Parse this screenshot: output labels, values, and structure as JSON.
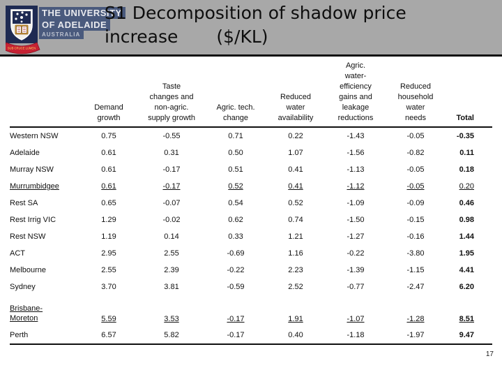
{
  "slide": {
    "title_line1": "S1 Decomposition of shadow price",
    "title_line2_word": "increase",
    "title_line2_unit": "($/KL)",
    "page_number": "17"
  },
  "logo": {
    "line1": "THE UNIVERSITY",
    "line2": "OF ADELAIDE",
    "line3": "AUSTRALIA",
    "motto": "SUB CRUCE LUMEN"
  },
  "colors": {
    "header_gray": "#a8a8a8",
    "header_rule": "#0d0d0d",
    "logo_navy": "#1e2a52",
    "logo_bar_blue": "#4a5a7d",
    "logo_red": "#c62233",
    "logo_gold": "#e8b23a",
    "text_black": "#101010"
  },
  "table": {
    "type": "table",
    "title": "S1 Decomposition of shadow price increase ($/KL)",
    "columns": [
      "Region",
      "Demand growth",
      "Taste changes and non-agric. supply growth",
      "Agric. tech. change",
      "Reduced water availability",
      "Agric. water-efficiency gains and leakage reductions",
      "Reduced household water needs",
      "Total"
    ],
    "header_lines": [
      [
        ""
      ],
      [
        "Demand",
        "growth"
      ],
      [
        "Taste",
        "changes and",
        "non-agric.",
        "supply growth"
      ],
      [
        "Agric. tech.",
        "change"
      ],
      [
        "Reduced",
        "water",
        "availability"
      ],
      [
        "Agric.",
        "water-",
        "efficiency",
        "gains and",
        "leakage",
        "reductions"
      ],
      [
        "Reduced",
        "household",
        "water",
        "needs"
      ],
      [
        "Total"
      ]
    ],
    "rows": [
      {
        "label_lines": [
          "Western NSW"
        ],
        "values": [
          "0.75",
          "-0.55",
          "0.71",
          "0.22",
          "-1.43",
          "-0.05",
          "-0.35"
        ],
        "underline": false,
        "total_bold": true,
        "tall": false
      },
      {
        "label_lines": [
          "Adelaide"
        ],
        "values": [
          "0.61",
          "0.31",
          "0.50",
          "1.07",
          "-1.56",
          "-0.82",
          "0.11"
        ],
        "underline": false,
        "total_bold": true,
        "tall": false
      },
      {
        "label_lines": [
          "Murray NSW"
        ],
        "values": [
          "0.61",
          "-0.17",
          "0.51",
          "0.41",
          "-1.13",
          "-0.05",
          "0.18"
        ],
        "underline": false,
        "total_bold": true,
        "tall": false
      },
      {
        "label_lines": [
          "Murrumbidgee"
        ],
        "values": [
          "0.61",
          "-0.17",
          "0.52",
          "0.41",
          "-1.12",
          "-0.05",
          "0.20"
        ],
        "underline": true,
        "total_bold": false,
        "tall": false
      },
      {
        "label_lines": [
          "Rest SA"
        ],
        "values": [
          "0.65",
          "-0.07",
          "0.54",
          "0.52",
          "-1.09",
          "-0.09",
          "0.46"
        ],
        "underline": false,
        "total_bold": true,
        "tall": false
      },
      {
        "label_lines": [
          "Rest Irrig VIC"
        ],
        "values": [
          "1.29",
          "-0.02",
          "0.62",
          "0.74",
          "-1.50",
          "-0.15",
          "0.98"
        ],
        "underline": false,
        "total_bold": true,
        "tall": false
      },
      {
        "label_lines": [
          "Rest NSW"
        ],
        "values": [
          "1.19",
          "0.14",
          "0.33",
          "1.21",
          "-1.27",
          "-0.16",
          "1.44"
        ],
        "underline": false,
        "total_bold": true,
        "tall": false
      },
      {
        "label_lines": [
          "ACT"
        ],
        "values": [
          "2.95",
          "2.55",
          "-0.69",
          "1.16",
          "-0.22",
          "-3.80",
          "1.95"
        ],
        "underline": false,
        "total_bold": true,
        "tall": false
      },
      {
        "label_lines": [
          "Melbourne"
        ],
        "values": [
          "2.55",
          "2.39",
          "-0.22",
          "2.23",
          "-1.39",
          "-1.15",
          "4.41"
        ],
        "underline": false,
        "total_bold": true,
        "tall": false
      },
      {
        "label_lines": [
          "Sydney"
        ],
        "values": [
          "3.70",
          "3.81",
          "-0.59",
          "2.52",
          "-0.77",
          "-2.47",
          "6.20"
        ],
        "underline": false,
        "total_bold": true,
        "tall": false
      },
      {
        "label_lines": [
          "Brisbane-",
          "Moreton"
        ],
        "values": [
          "5.59",
          "3.53",
          "-0.17",
          "1.91",
          "-1.07",
          "-1.28",
          "8.51"
        ],
        "underline": true,
        "total_bold": true,
        "tall": true
      },
      {
        "label_lines": [
          "Perth"
        ],
        "values": [
          "6.57",
          "5.82",
          "-0.17",
          "0.40",
          "-1.18",
          "-1.97",
          "9.47"
        ],
        "underline": false,
        "total_bold": true,
        "tall": false
      }
    ]
  }
}
